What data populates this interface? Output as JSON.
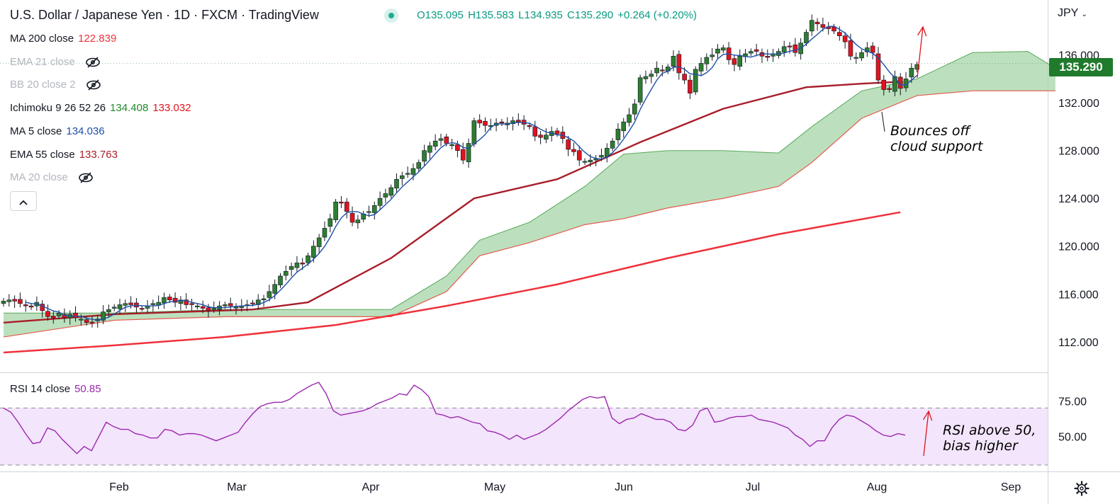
{
  "header": {
    "title": "U.S. Dollar / Japanese Yen · 1D · FXCM · TradingView",
    "open": "O135.095",
    "high": "H135.583",
    "low": "L134.935",
    "close": "C135.290",
    "change": "+0.264 (+0.20%)"
  },
  "legend": {
    "ma200": {
      "label": "MA 200 close",
      "value": "122.839"
    },
    "ema21": {
      "label": "EMA 21 close"
    },
    "bb20": {
      "label": "BB 20 close 2"
    },
    "ichimoku": {
      "label": "Ichimoku 9 26 52 26",
      "value1": "134.408",
      "value2": "133.032"
    },
    "ma5": {
      "label": "MA 5 close",
      "value": "134.036"
    },
    "ema55": {
      "label": "EMA 55 close",
      "value": "133.763"
    },
    "ma20": {
      "label": "MA 20 close"
    },
    "collapse_icon": "chevron-up-icon"
  },
  "rsi_legend": {
    "label": "RSI 14 close",
    "value": "50.85"
  },
  "price_axis": {
    "currency": "JPY",
    "current_price": "135.290",
    "ticks": [
      "136.000",
      "132.000",
      "128.000",
      "124.000",
      "120.000",
      "116.000",
      "112.000"
    ]
  },
  "rsi_axis": {
    "ticks": [
      "75.00",
      "50.00"
    ]
  },
  "time_axis": {
    "labels": [
      "Feb",
      "Mar",
      "Apr",
      "May",
      "Jun",
      "Jul",
      "Aug",
      "Sep"
    ]
  },
  "annotations": {
    "cloud_line1": "Bounces off",
    "cloud_line2": "cloud support",
    "rsi_line1": "RSI above 50,",
    "rsi_line2": "bias higher"
  },
  "colors": {
    "up": "#2e7d32",
    "down": "#e0131f",
    "ma200": "#f0313b",
    "ema55": "#a81e2a",
    "ma5": "#1e4fa8",
    "cloud": "#a5d6a7",
    "cloud_edge": "#e55a4e",
    "rsi": "#9c27b0",
    "rsi_band": "#f3e5fb"
  },
  "chart_data": {
    "type": "candlestick",
    "title": "U.S. Dollar / Japanese Yen · 1D · FXCM · TradingView",
    "ylim": [
      109.5,
      140.6
    ],
    "y_ticks": [
      112,
      116,
      120,
      124,
      128,
      132,
      136
    ],
    "last_close": 135.29,
    "x_labels": [
      "Feb",
      "Mar",
      "Apr",
      "May",
      "Jun",
      "Jul",
      "Aug",
      "Sep"
    ],
    "series": [
      {
        "name": "USD/JPY",
        "type": "candlestick",
        "close": [
          115.4,
          115.5,
          115.4,
          115.2,
          115.0,
          114.9,
          115.3,
          114.6,
          114.1,
          114.0,
          114.4,
          114.0,
          114.3,
          114.0,
          113.9,
          113.6,
          113.6,
          113.9,
          114.5,
          114.7,
          114.9,
          115.1,
          115.2,
          115.1,
          114.9,
          114.8,
          115.0,
          115.2,
          115.3,
          115.7,
          115.5,
          115.3,
          115.5,
          115.1,
          115.1,
          115.0,
          114.8,
          114.6,
          114.8,
          115.0,
          115.1,
          115.0,
          114.9,
          115.0,
          115.1,
          115.2,
          115.5,
          115.6,
          116.2,
          116.8,
          117.5,
          117.9,
          118.3,
          118.6,
          118.5,
          119.2,
          120.0,
          120.7,
          121.5,
          122.3,
          123.7,
          123.6,
          122.9,
          122.0,
          122.2,
          122.7,
          122.9,
          123.4,
          124.0,
          124.4,
          124.9,
          125.6,
          125.9,
          126.1,
          126.5,
          127.0,
          128.0,
          128.4,
          128.8,
          129.0,
          128.6,
          128.5,
          128.0,
          127.2,
          128.6,
          130.5,
          130.3,
          130.1,
          130.1,
          130.3,
          130.3,
          130.3,
          130.5,
          130.4,
          130.2,
          130.0,
          129.2,
          129.1,
          129.3,
          129.6,
          129.4,
          129.0,
          128.1,
          127.9,
          127.2,
          127.1,
          127.2,
          127.3,
          127.6,
          128.2,
          128.8,
          129.8,
          130.4,
          131.0,
          131.9,
          134.1,
          134.2,
          134.4,
          134.9,
          134.7,
          135.0,
          135.9,
          134.5,
          133.9,
          132.8,
          134.8,
          135.3,
          135.8,
          136.0,
          136.5,
          136.6,
          135.6,
          135.2,
          135.9,
          136.1,
          136.3,
          136.3,
          135.9,
          135.8,
          136.1,
          136.3,
          136.7,
          136.7,
          136.2,
          137.0,
          137.9,
          138.9,
          138.6,
          138.3,
          138.2,
          138.0,
          137.6,
          137.1,
          135.9,
          135.8,
          136.2,
          136.6,
          136.2,
          133.9,
          133.1,
          133.1,
          134.2,
          133.2,
          134.0,
          134.9,
          135.2
        ],
        "low_high_note": "approximate"
      }
    ],
    "indicators": {
      "ma200": {
        "name": "MA 200 close",
        "values": [
          [
            0,
            111.1
          ],
          [
            20,
            111.7
          ],
          [
            40,
            112.4
          ],
          [
            60,
            113.4
          ],
          [
            80,
            115.0
          ],
          [
            100,
            116.8
          ],
          [
            120,
            119.0
          ],
          [
            140,
            121.0
          ],
          [
            162,
            122.84
          ]
        ]
      },
      "ema55": {
        "name": "EMA 55 close",
        "values": [
          [
            0,
            113.6
          ],
          [
            20,
            114.3
          ],
          [
            45,
            114.7
          ],
          [
            55,
            115.3
          ],
          [
            70,
            119.0
          ],
          [
            85,
            124.0
          ],
          [
            100,
            125.6
          ],
          [
            115,
            128.7
          ],
          [
            130,
            131.5
          ],
          [
            145,
            133.3
          ],
          [
            155,
            133.6
          ],
          [
            162,
            133.76
          ]
        ]
      },
      "ichimoku_span_a": [
        [
          0,
          114.4
        ],
        [
          20,
          114.4
        ],
        [
          40,
          114.7
        ],
        [
          70,
          114.7
        ],
        [
          80,
          117.5
        ],
        [
          86,
          120.5
        ],
        [
          95,
          122.0
        ],
        [
          105,
          125.0
        ],
        [
          112,
          127.7
        ],
        [
          120,
          128.0
        ],
        [
          130,
          128.0
        ],
        [
          140,
          127.8
        ],
        [
          146,
          130.0
        ],
        [
          155,
          133.0
        ],
        [
          165,
          134.0
        ],
        [
          175,
          136.2
        ],
        [
          185,
          136.3
        ],
        [
          190,
          134.9
        ]
      ],
      "ichimoku_span_b": [
        [
          0,
          112.4
        ],
        [
          20,
          113.8
        ],
        [
          40,
          114.1
        ],
        [
          70,
          114.1
        ],
        [
          80,
          116.2
        ],
        [
          86,
          119.2
        ],
        [
          95,
          120.3
        ],
        [
          105,
          121.8
        ],
        [
          112,
          122.3
        ],
        [
          120,
          123.2
        ],
        [
          130,
          124.0
        ],
        [
          140,
          125.0
        ],
        [
          146,
          127.0
        ],
        [
          155,
          130.7
        ],
        [
          165,
          132.6
        ],
        [
          175,
          133.0
        ],
        [
          190,
          133.0
        ]
      ]
    },
    "rsi": {
      "name": "RSI 14 close",
      "ylim": [
        26,
        94
      ],
      "bands": [
        30,
        70
      ],
      "last": 50.85,
      "values": [
        70,
        67,
        60,
        52,
        45,
        46,
        56,
        54,
        48,
        43,
        38,
        43,
        40,
        50,
        60,
        57,
        55,
        55,
        52,
        51,
        49,
        49,
        55,
        54,
        51,
        52,
        52,
        51,
        49,
        47,
        49,
        51,
        53,
        60,
        66,
        71,
        73,
        74,
        74,
        76,
        80,
        83,
        86,
        88,
        80,
        68,
        65,
        66,
        67,
        68,
        70,
        73,
        75,
        77,
        80,
        79,
        86,
        83,
        78,
        66,
        65,
        63,
        64,
        62,
        60,
        59,
        54,
        53,
        51,
        48,
        51,
        48,
        50,
        52,
        55,
        59,
        63,
        68,
        72,
        76,
        78,
        77,
        78,
        63,
        59,
        62,
        63,
        66,
        64,
        62,
        62,
        60,
        55,
        54,
        58,
        68,
        70,
        60,
        61,
        63,
        64,
        64,
        65,
        62,
        61,
        60,
        58,
        56,
        51,
        48,
        43,
        47,
        47,
        56,
        62,
        65,
        64,
        61,
        58,
        54,
        51,
        50,
        52,
        51
      ]
    }
  }
}
